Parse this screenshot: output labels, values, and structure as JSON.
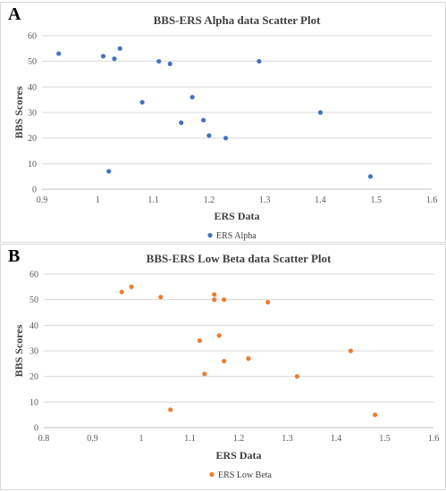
{
  "chart_data": [
    {
      "panel_label": "A",
      "type": "scatter",
      "title": "BBS-ERS Alpha data Scatter Plot",
      "xlabel": "ERS Data",
      "ylabel": "BBS Scores",
      "xlim": [
        0.9,
        1.6
      ],
      "ylim": [
        0,
        60
      ],
      "xticks": [
        "0.9",
        "1",
        "1.1",
        "1.2",
        "1.3",
        "1.4",
        "1.5",
        "1.6"
      ],
      "yticks": [
        "0",
        "10",
        "20",
        "30",
        "40",
        "50",
        "60"
      ],
      "grid": "horizontal",
      "legend": "bottom",
      "color": "#4472c4",
      "series": [
        {
          "name": "ERS Alpha",
          "points": [
            [
              0.93,
              53
            ],
            [
              1.01,
              52
            ],
            [
              1.02,
              7
            ],
            [
              1.03,
              51
            ],
            [
              1.04,
              55
            ],
            [
              1.08,
              34
            ],
            [
              1.11,
              50
            ],
            [
              1.13,
              49
            ],
            [
              1.15,
              26
            ],
            [
              1.17,
              36
            ],
            [
              1.19,
              27
            ],
            [
              1.2,
              21
            ],
            [
              1.23,
              20
            ],
            [
              1.29,
              50
            ],
            [
              1.4,
              30
            ],
            [
              1.49,
              5
            ]
          ]
        }
      ]
    },
    {
      "panel_label": "B",
      "type": "scatter",
      "title": "BBS-ERS Low Beta data Scatter Plot",
      "xlabel": "ERS Data",
      "ylabel": "BBS Scores",
      "xlim": [
        0.8,
        1.6
      ],
      "ylim": [
        0,
        60
      ],
      "xticks": [
        "0.8",
        "0.9",
        "1",
        "1.1",
        "1.2",
        "1.3",
        "1.4",
        "1.5",
        "1.6"
      ],
      "yticks": [
        "0",
        "10",
        "20",
        "30",
        "40",
        "50",
        "60"
      ],
      "grid": "horizontal",
      "legend": "bottom",
      "color": "#ed7d31",
      "series": [
        {
          "name": "ERS Low Beta",
          "points": [
            [
              0.96,
              53
            ],
            [
              0.98,
              55
            ],
            [
              1.04,
              51
            ],
            [
              1.06,
              7
            ],
            [
              1.12,
              34
            ],
            [
              1.13,
              21
            ],
            [
              1.15,
              52
            ],
            [
              1.15,
              50
            ],
            [
              1.16,
              36
            ],
            [
              1.17,
              50
            ],
            [
              1.17,
              26
            ],
            [
              1.22,
              27
            ],
            [
              1.26,
              49
            ],
            [
              1.32,
              20
            ],
            [
              1.43,
              30
            ],
            [
              1.48,
              5
            ]
          ]
        }
      ]
    }
  ]
}
